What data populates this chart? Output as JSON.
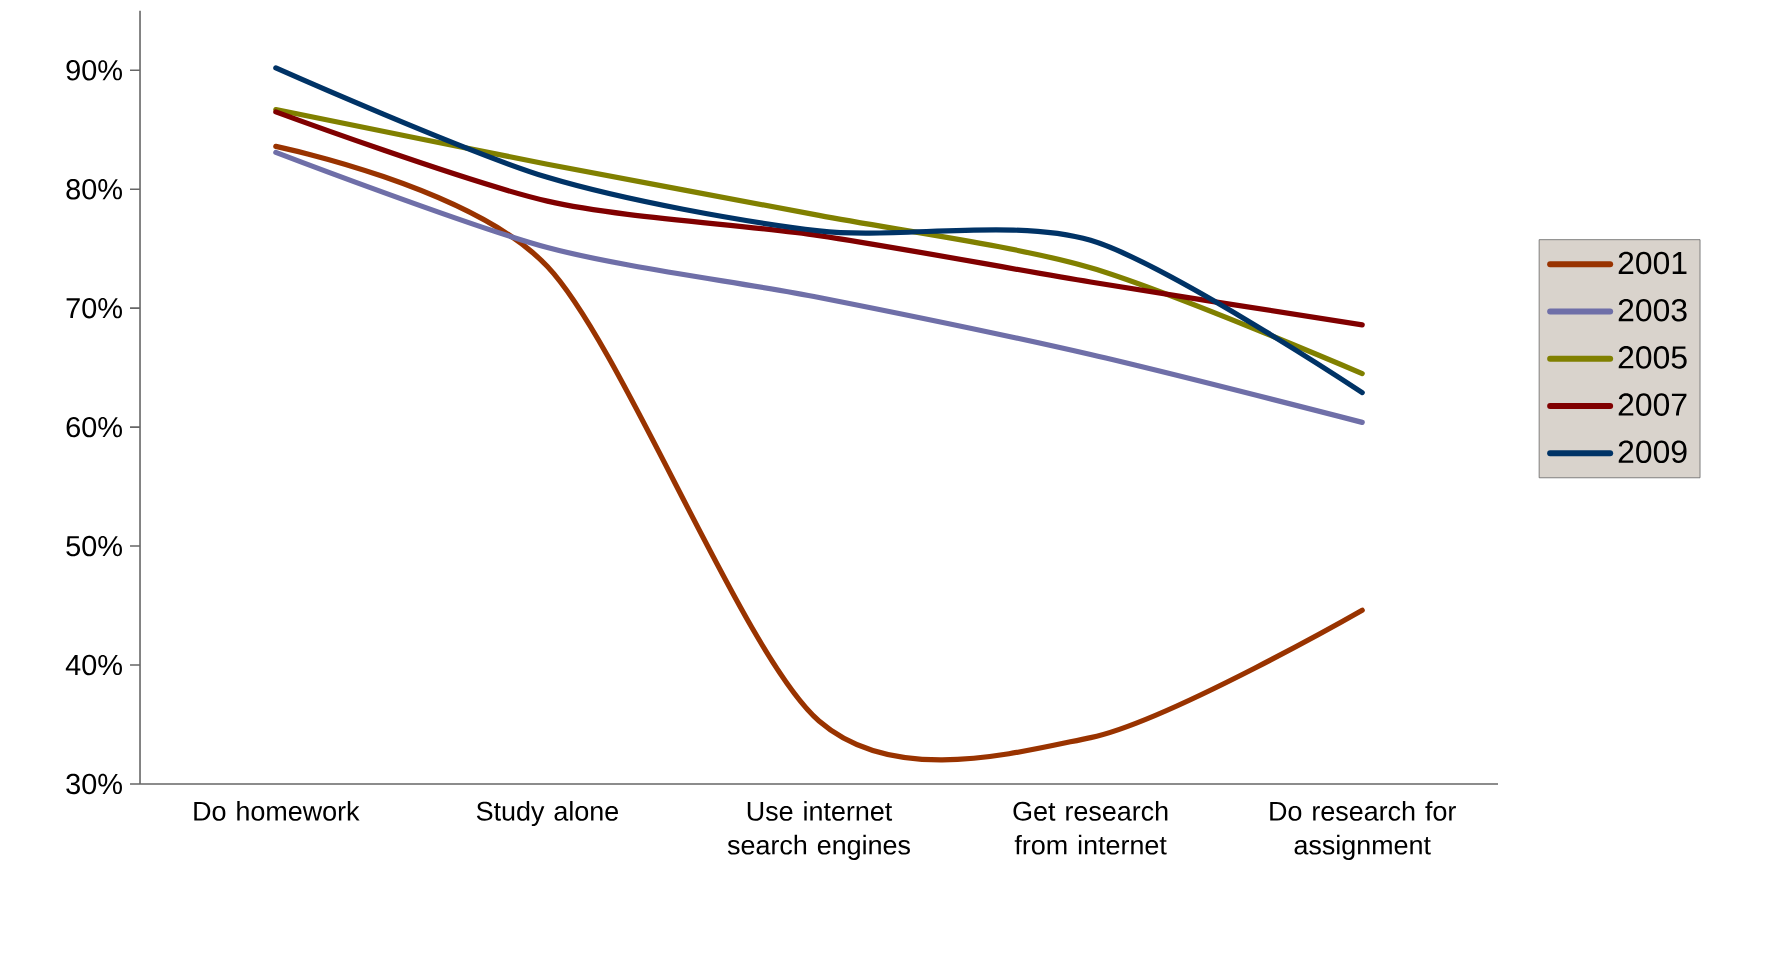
{
  "chart_data": {
    "type": "line",
    "categories": [
      "Do homework",
      "Study alone",
      "Use internet search engines",
      "Get research from internet",
      "Do research for assignment"
    ],
    "series": [
      {
        "name": "2001",
        "color": "#993300",
        "values": [
          83.6,
          73.5,
          35.3,
          33.9,
          44.6
        ]
      },
      {
        "name": "2003",
        "color": "#6f6fa8",
        "values": [
          83.1,
          75.1,
          70.9,
          66.1,
          60.4
        ]
      },
      {
        "name": "2005",
        "color": "#808000",
        "values": [
          86.7,
          82.1,
          77.8,
          73.4,
          64.5
        ]
      },
      {
        "name": "2007",
        "color": "#800000",
        "values": [
          86.5,
          79.0,
          76.1,
          72.2,
          68.6
        ]
      },
      {
        "name": "2009",
        "color": "#003366",
        "values": [
          90.2,
          81.0,
          76.5,
          75.7,
          62.9
        ]
      }
    ],
    "ylim": [
      30,
      95
    ],
    "yticks": [
      {
        "value": 30,
        "label": "30%"
      },
      {
        "value": 40,
        "label": "40%"
      },
      {
        "value": 50,
        "label": "50%"
      },
      {
        "value": 60,
        "label": "60%"
      },
      {
        "value": 70,
        "label": "70%"
      },
      {
        "value": 80,
        "label": "80%"
      },
      {
        "value": 90,
        "label": "90%"
      }
    ],
    "legend": "right"
  }
}
